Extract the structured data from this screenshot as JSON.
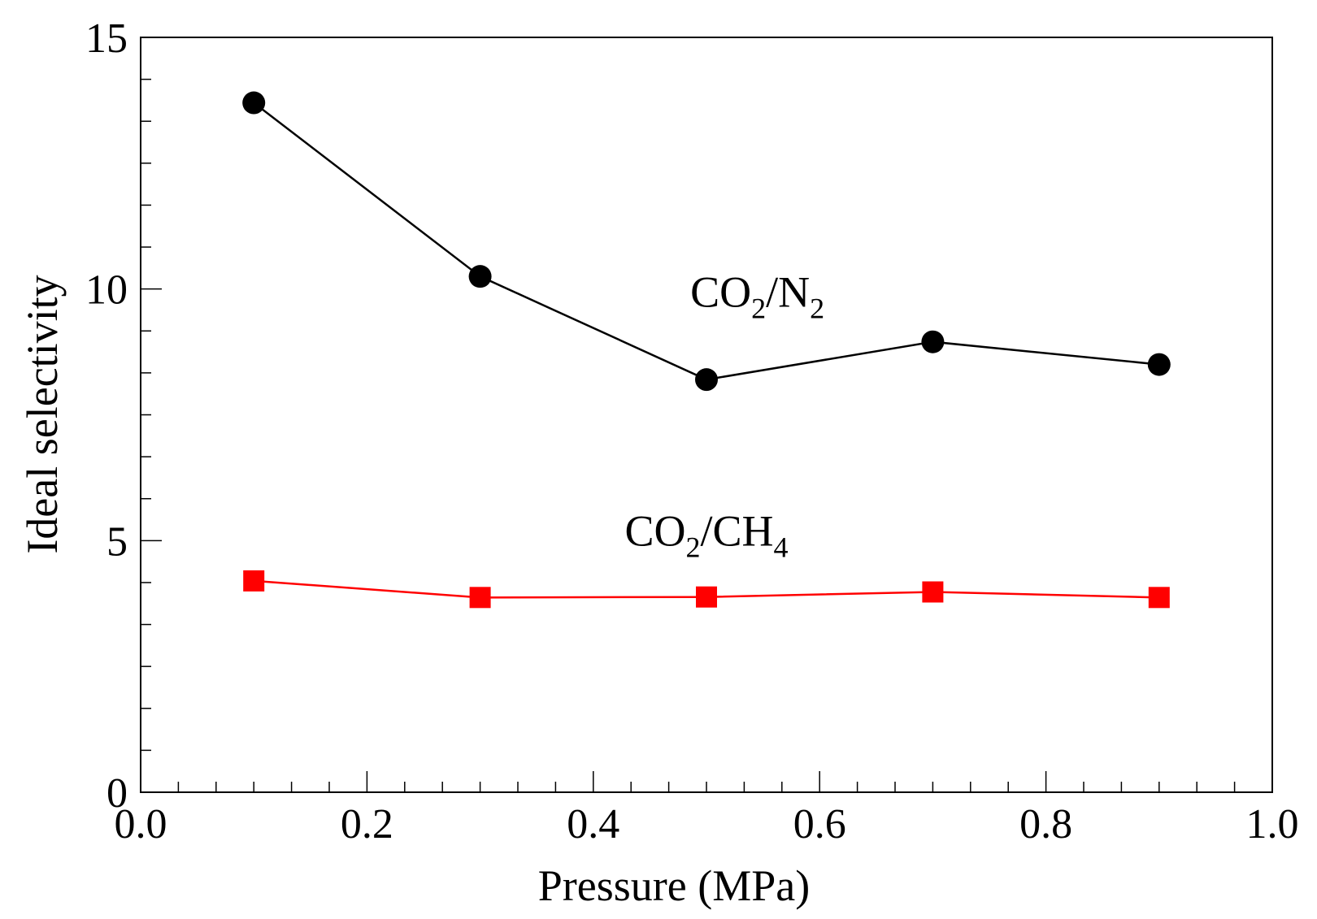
{
  "chart_data": {
    "type": "line",
    "title": "",
    "xlabel": "Pressure (MPa)",
    "ylabel": "Ideal selectivity",
    "xlim": [
      0.0,
      1.0
    ],
    "ylim": [
      0,
      15
    ],
    "x_ticks": [
      "0.0",
      "0.2",
      "0.4",
      "0.6",
      "0.8",
      "1.0"
    ],
    "x_tick_values": [
      0.0,
      0.2,
      0.4,
      0.6,
      0.8,
      1.0
    ],
    "y_ticks": [
      "0",
      "5",
      "10",
      "15"
    ],
    "y_tick_values": [
      0,
      5,
      10,
      15
    ],
    "x_minor_step": 0.0333,
    "y_minor_step": 0.8333,
    "grid": false,
    "legend": "none",
    "series": [
      {
        "name": "CO2/N2",
        "marker": "circle",
        "color": "#000000",
        "x": [
          0.1,
          0.3,
          0.5,
          0.7,
          0.9
        ],
        "y": [
          13.7,
          10.25,
          8.2,
          8.95,
          8.5
        ]
      },
      {
        "name": "CO2/CH4",
        "marker": "square",
        "color": "#ff0000",
        "x": [
          0.1,
          0.3,
          0.5,
          0.7,
          0.9
        ],
        "y": [
          4.2,
          3.87,
          3.88,
          3.98,
          3.87
        ]
      }
    ],
    "annotations": [
      {
        "series": 0,
        "base": "CO",
        "sub1": "2",
        "mid": "/N",
        "sub2": "2",
        "x": 0.545,
        "y": 9.65
      },
      {
        "series": 1,
        "base": "CO",
        "sub1": "2",
        "mid": "/CH",
        "sub2": "4",
        "x": 0.5,
        "y": 4.9
      }
    ]
  }
}
